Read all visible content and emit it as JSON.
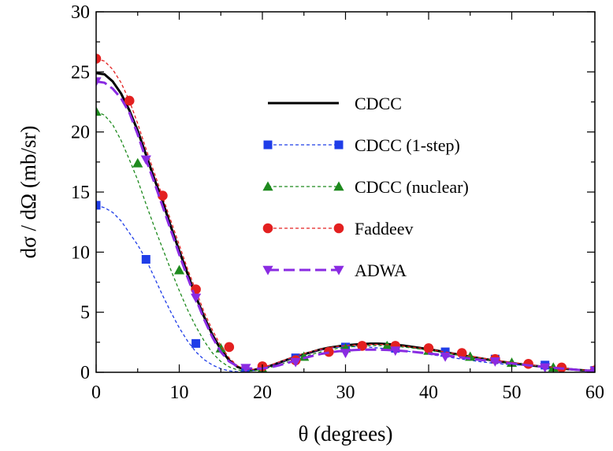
{
  "chart_data": {
    "type": "line",
    "xlabel": "θ (degrees)",
    "ylabel": "dσ / dΩ (mb/sr)",
    "xlim": [
      0,
      60
    ],
    "ylim": [
      0,
      30
    ],
    "xticks": [
      0,
      10,
      20,
      30,
      40,
      50,
      60
    ],
    "yticks": [
      0,
      5,
      10,
      15,
      20,
      25,
      30
    ],
    "grid": false,
    "legend_position": "top-right",
    "series": [
      {
        "name": "CDCC",
        "color": "#000000",
        "style": "solid",
        "marker": "none",
        "x": [
          0,
          1,
          2,
          3,
          4,
          5,
          6,
          7,
          8,
          9,
          10,
          11,
          12,
          13,
          14,
          15,
          16,
          17,
          18,
          19,
          20,
          21,
          22,
          23,
          24,
          25,
          26,
          27,
          28,
          29,
          30,
          31,
          32,
          33,
          34,
          35,
          36,
          37,
          38,
          39,
          40,
          41,
          42,
          43,
          44,
          45,
          46,
          47,
          48,
          49,
          50,
          51,
          52,
          53,
          54,
          55,
          56,
          57,
          58,
          59,
          60
        ],
        "y": [
          24.9,
          24.8,
          24.2,
          23.2,
          21.8,
          20.1,
          18.1,
          16.1,
          14.2,
          12.1,
          10.1,
          8.2,
          6.3,
          4.6,
          3.1,
          1.9,
          1.0,
          0.45,
          0.2,
          0.2,
          0.35,
          0.55,
          0.8,
          1.05,
          1.3,
          1.5,
          1.7,
          1.9,
          2.05,
          2.15,
          2.25,
          2.3,
          2.35,
          2.38,
          2.38,
          2.35,
          2.3,
          2.22,
          2.12,
          2.02,
          1.92,
          1.8,
          1.67,
          1.55,
          1.43,
          1.3,
          1.18,
          1.07,
          0.96,
          0.86,
          0.77,
          0.68,
          0.6,
          0.52,
          0.45,
          0.38,
          0.31,
          0.25,
          0.2,
          0.15,
          0.12
        ]
      },
      {
        "name": "CDCC (1-step)",
        "color": "#1f3de8",
        "style": "dotted",
        "marker": "square",
        "x": [
          0,
          1,
          2,
          3,
          4,
          5,
          6,
          7,
          8,
          9,
          10,
          11,
          12,
          13,
          14,
          15,
          16,
          17,
          18,
          19,
          20,
          21,
          22,
          23,
          24,
          25,
          26,
          27,
          28,
          29,
          30,
          31,
          32,
          33,
          34,
          35,
          36,
          37,
          38,
          39,
          40,
          41,
          42,
          43,
          44,
          45,
          46,
          47,
          48,
          49,
          50,
          51,
          52,
          53,
          54,
          55,
          56,
          57,
          58,
          59,
          60
        ],
        "y": [
          13.9,
          13.7,
          13.3,
          12.6,
          11.6,
          10.6,
          9.4,
          7.9,
          6.4,
          5.0,
          3.7,
          2.6,
          1.7,
          1.05,
          0.6,
          0.3,
          0.12,
          0.05,
          0.06,
          0.15,
          0.3,
          0.55,
          0.8,
          1.05,
          1.3,
          1.52,
          1.72,
          1.88,
          2.0,
          2.08,
          2.12,
          2.13,
          2.12,
          2.08,
          2.02,
          1.96,
          1.88,
          1.8,
          1.7,
          1.6,
          1.5,
          1.4,
          1.3,
          1.2,
          1.1,
          1.0,
          0.9,
          0.82,
          0.74,
          0.68,
          0.64,
          0.6,
          0.58,
          0.55,
          0.52,
          0.45,
          0.35,
          0.25,
          0.18,
          0.12,
          0.1
        ],
        "marker_x": [
          0,
          6,
          12,
          18,
          24,
          30,
          36,
          42,
          48,
          54,
          60
        ],
        "marker_y": [
          13.9,
          9.4,
          2.4,
          0.05,
          1.2,
          2.1,
          2.0,
          1.7,
          1.1,
          0.6,
          0.15
        ]
      },
      {
        "name": "CDCC (nuclear)",
        "color": "#1e8a1e",
        "style": "dotted",
        "marker": "triangle-up",
        "x": [
          0,
          1,
          2,
          3,
          4,
          5,
          6,
          7,
          8,
          9,
          10,
          11,
          12,
          13,
          14,
          15,
          16,
          17,
          18,
          19,
          20,
          21,
          22,
          23,
          24,
          25,
          26,
          27,
          28,
          29,
          30,
          31,
          32,
          33,
          34,
          35,
          36,
          37,
          38,
          39,
          40,
          41,
          42,
          43,
          44,
          45,
          46,
          47,
          48,
          49,
          50,
          51,
          52,
          53,
          54,
          55,
          56,
          57,
          58,
          59,
          60
        ],
        "y": [
          21.7,
          21.4,
          20.6,
          19.3,
          17.7,
          16.0,
          14.0,
          12.1,
          10.3,
          8.5,
          6.8,
          5.2,
          3.8,
          2.6,
          1.6,
          0.9,
          0.45,
          0.2,
          0.1,
          0.12,
          0.25,
          0.42,
          0.62,
          0.85,
          1.08,
          1.3,
          1.5,
          1.68,
          1.85,
          1.98,
          2.08,
          2.15,
          2.2,
          2.22,
          2.22,
          2.2,
          2.16,
          2.1,
          2.02,
          1.93,
          1.83,
          1.72,
          1.61,
          1.5,
          1.39,
          1.28,
          1.17,
          1.06,
          0.96,
          0.87,
          0.78,
          0.69,
          0.61,
          0.53,
          0.46,
          0.39,
          0.32,
          0.26,
          0.2,
          0.15,
          0.12
        ],
        "marker_x": [
          0,
          5,
          10,
          15,
          20,
          25,
          30,
          35,
          40,
          45,
          50,
          55,
          60
        ],
        "marker_y": [
          21.7,
          17.4,
          8.5,
          2.0,
          0.3,
          1.3,
          2.0,
          2.2,
          1.8,
          1.3,
          0.8,
          0.4,
          0.12
        ]
      },
      {
        "name": "Faddeev",
        "color": "#e32020",
        "style": "dotted",
        "marker": "circle",
        "x": [
          0,
          1,
          2,
          3,
          4,
          5,
          6,
          7,
          8,
          9,
          10,
          11,
          12,
          13,
          14,
          15,
          16,
          17,
          18,
          19,
          20,
          21,
          22,
          23,
          24,
          25,
          26,
          27,
          28,
          29,
          30,
          31,
          32,
          33,
          34,
          35,
          36,
          37,
          38,
          39,
          40,
          41,
          42,
          43,
          44,
          45,
          46,
          47,
          48,
          49,
          50,
          51,
          52,
          53,
          54,
          55,
          56,
          57,
          58,
          59,
          60
        ],
        "y": [
          26.1,
          25.9,
          25.2,
          24.1,
          22.6,
          20.7,
          18.6,
          16.6,
          14.6,
          12.6,
          10.6,
          8.6,
          6.8,
          5.0,
          3.5,
          2.2,
          1.2,
          0.55,
          0.25,
          0.25,
          0.4,
          0.6,
          0.85,
          1.1,
          1.35,
          1.55,
          1.75,
          1.92,
          2.05,
          2.15,
          2.22,
          2.27,
          2.3,
          2.32,
          2.32,
          2.3,
          2.25,
          2.18,
          2.1,
          2.01,
          1.92,
          1.81,
          1.7,
          1.58,
          1.47,
          1.35,
          1.24,
          1.13,
          1.02,
          0.92,
          0.83,
          0.74,
          0.65,
          0.57,
          0.49,
          0.42,
          0.35,
          0.28,
          0.22,
          0.17,
          0.13
        ],
        "marker_x": [
          0,
          4,
          8,
          12,
          16,
          20,
          24,
          28,
          32,
          36,
          40,
          44,
          48,
          52,
          56,
          60
        ],
        "marker_y": [
          26.1,
          22.6,
          14.7,
          6.9,
          2.1,
          0.5,
          1.0,
          1.7,
          2.2,
          2.2,
          2.0,
          1.6,
          1.1,
          0.7,
          0.4,
          0.15
        ]
      },
      {
        "name": "ADWA",
        "color": "#8a2be2",
        "style": "dashed",
        "marker": "triangle-down",
        "x": [
          0,
          1,
          2,
          3,
          4,
          5,
          6,
          7,
          8,
          9,
          10,
          11,
          12,
          13,
          14,
          15,
          16,
          17,
          18,
          19,
          20,
          21,
          22,
          23,
          24,
          25,
          26,
          27,
          28,
          29,
          30,
          31,
          32,
          33,
          34,
          35,
          36,
          37,
          38,
          39,
          40,
          41,
          42,
          43,
          44,
          45,
          46,
          47,
          48,
          49,
          50,
          51,
          52,
          53,
          54,
          55,
          56,
          57,
          58,
          59,
          60
        ],
        "y": [
          24.2,
          24.1,
          23.6,
          22.8,
          21.6,
          19.8,
          17.7,
          15.8,
          13.8,
          11.8,
          9.8,
          7.9,
          6.1,
          4.4,
          2.9,
          1.7,
          0.9,
          0.5,
          0.35,
          0.3,
          0.32,
          0.42,
          0.58,
          0.78,
          0.98,
          1.18,
          1.36,
          1.52,
          1.64,
          1.74,
          1.8,
          1.85,
          1.88,
          1.89,
          1.88,
          1.86,
          1.82,
          1.77,
          1.71,
          1.64,
          1.57,
          1.49,
          1.41,
          1.32,
          1.23,
          1.14,
          1.05,
          0.97,
          0.89,
          0.81,
          0.73,
          0.66,
          0.58,
          0.51,
          0.44,
          0.38,
          0.32,
          0.26,
          0.2,
          0.15,
          0.12
        ],
        "marker_x": [
          0,
          6,
          12,
          18,
          24,
          30,
          36,
          42,
          48,
          54,
          60
        ],
        "marker_y": [
          24.2,
          17.7,
          6.2,
          0.35,
          0.85,
          1.6,
          1.8,
          1.3,
          0.9,
          0.4,
          0.12
        ]
      }
    ]
  }
}
